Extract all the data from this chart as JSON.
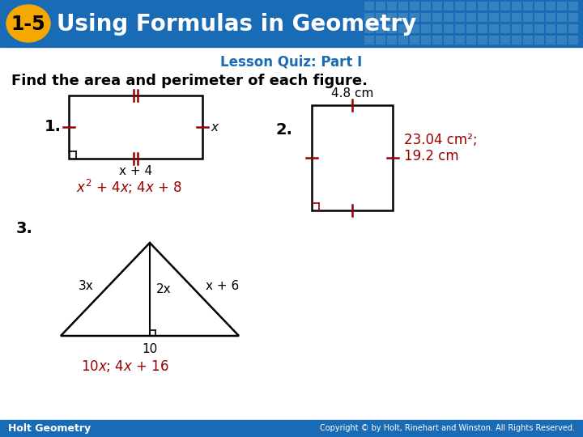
{
  "header_bg_color": "#1A6BB5",
  "header_text": "Using Formulas in Geometry",
  "header_badge_text": "1-5",
  "header_badge_bg": "#F5A800",
  "subtitle": "Lesson Quiz: Part I",
  "subtitle_color": "#1A6BB5",
  "body_bg": "#FFFFFF",
  "main_instruction": "Find the area and perimeter of each figure.",
  "main_instruction_color": "#000000",
  "footer_bg": "#1A6BB5",
  "footer_left": "Holt Geometry",
  "footer_right": "Copyright © by Holt, Rinehart and Winston. All Rights Reserved.",
  "footer_text_color": "#FFFFFF",
  "red_color": "#990000",
  "black": "#000000"
}
